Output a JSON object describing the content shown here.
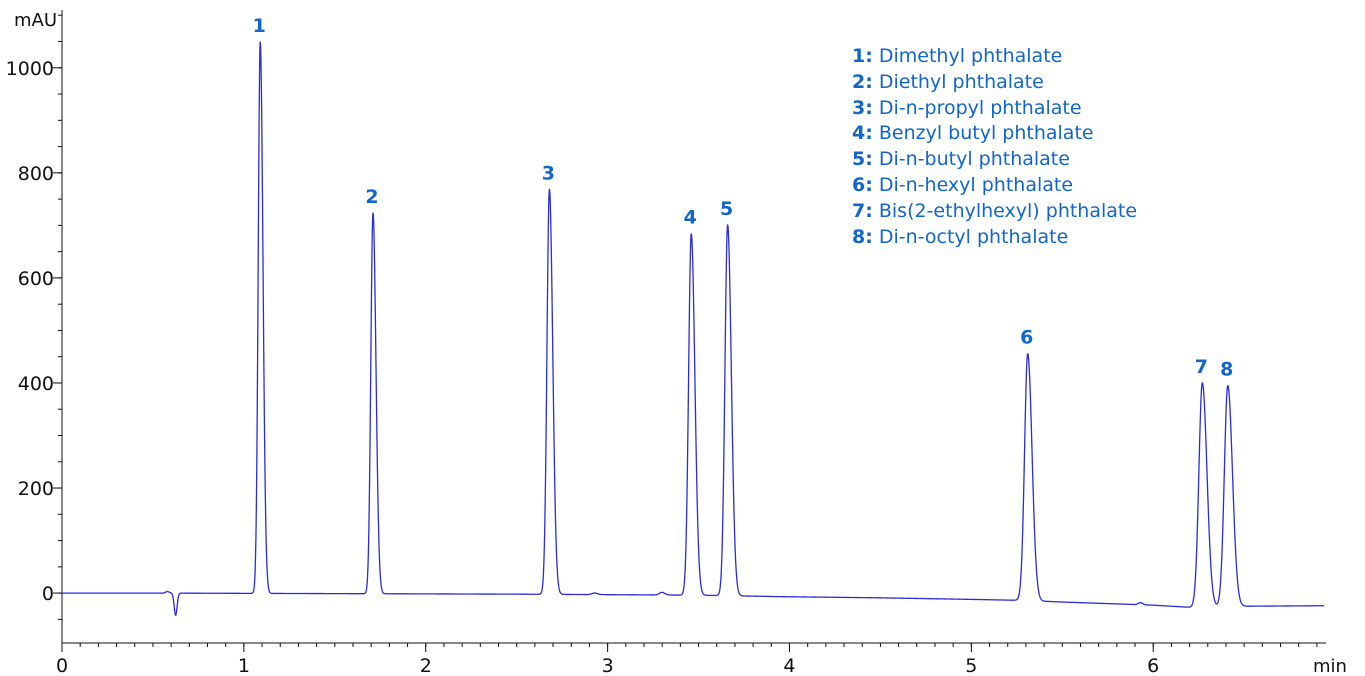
{
  "chart_data": {
    "type": "line",
    "title": "",
    "xlabel": "min",
    "ylabel": "mAU",
    "xlim": [
      0,
      6.95
    ],
    "ylim": [
      -95,
      1110
    ],
    "x_ticks": [
      0,
      1,
      2,
      3,
      4,
      5,
      6
    ],
    "y_ticks": [
      0,
      200,
      400,
      600,
      800,
      1000
    ],
    "x_minor_step": 0.1,
    "y_minor_step": 50,
    "grid": false,
    "legend_position": "top-right",
    "line_color": "#2b2bdd",
    "label_color": "#1166cc",
    "baseline": [
      {
        "x": 0.0,
        "y": 0.0
      },
      {
        "x": 0.55,
        "y": 0.0
      },
      {
        "x": 1.5,
        "y": -1.0
      },
      {
        "x": 2.5,
        "y": -2.0
      },
      {
        "x": 3.5,
        "y": -4.0
      },
      {
        "x": 4.0,
        "y": -7.0
      },
      {
        "x": 4.5,
        "y": -9.0
      },
      {
        "x": 5.0,
        "y": -12.0
      },
      {
        "x": 5.3,
        "y": -14.0
      },
      {
        "x": 5.5,
        "y": -17.0
      },
      {
        "x": 6.0,
        "y": -23.0
      },
      {
        "x": 6.25,
        "y": -28.0
      },
      {
        "x": 6.5,
        "y": -25.0
      },
      {
        "x": 6.95,
        "y": -24.0
      }
    ],
    "disturbances": [
      {
        "x": 0.58,
        "height": 3,
        "width": 0.01
      },
      {
        "x": 0.625,
        "height": -42,
        "width": 0.008
      },
      {
        "x": 2.93,
        "height": 3,
        "width": 0.015
      },
      {
        "x": 3.3,
        "height": 5,
        "width": 0.015
      },
      {
        "x": 5.93,
        "height": 4,
        "width": 0.012
      }
    ],
    "peaks": [
      {
        "label": "1",
        "compound": "Dimethyl phthalate",
        "rt": 1.09,
        "height": 1050
      },
      {
        "label": "2",
        "compound": "Diethyl phthalate",
        "rt": 1.71,
        "height": 725
      },
      {
        "label": "3",
        "compound": "Di-n-propyl phthalate",
        "rt": 2.68,
        "height": 771
      },
      {
        "label": "4",
        "compound": "Benzyl butyl phthalate",
        "rt": 3.46,
        "height": 688
      },
      {
        "label": "5",
        "compound": "Di-n-butyl phthalate",
        "rt": 3.66,
        "height": 706
      },
      {
        "label": "6",
        "compound": "Di-n-hexyl phthalate",
        "rt": 5.31,
        "height": 470
      },
      {
        "label": "7",
        "compound": "Bis(2-ethylhexyl) phthalate",
        "rt": 6.27,
        "height": 428
      },
      {
        "label": "8",
        "compound": "Di-n-octyl phthalate",
        "rt": 6.41,
        "height": 421
      }
    ]
  },
  "legend": {
    "items": [
      {
        "num": "1:",
        "text": "Dimethyl phthalate"
      },
      {
        "num": "2:",
        "text": "Diethyl phthalate"
      },
      {
        "num": "3:",
        "text": "Di-n-propyl phthalate"
      },
      {
        "num": "4:",
        "text": "Benzyl butyl phthalate"
      },
      {
        "num": "5:",
        "text": "Di-n-butyl phthalate"
      },
      {
        "num": "6:",
        "text": "Di-n-hexyl phthalate"
      },
      {
        "num": "7:",
        "text": "Bis(2-ethylhexyl) phthalate"
      },
      {
        "num": "8:",
        "text": "Di-n-octyl phthalate"
      }
    ]
  }
}
